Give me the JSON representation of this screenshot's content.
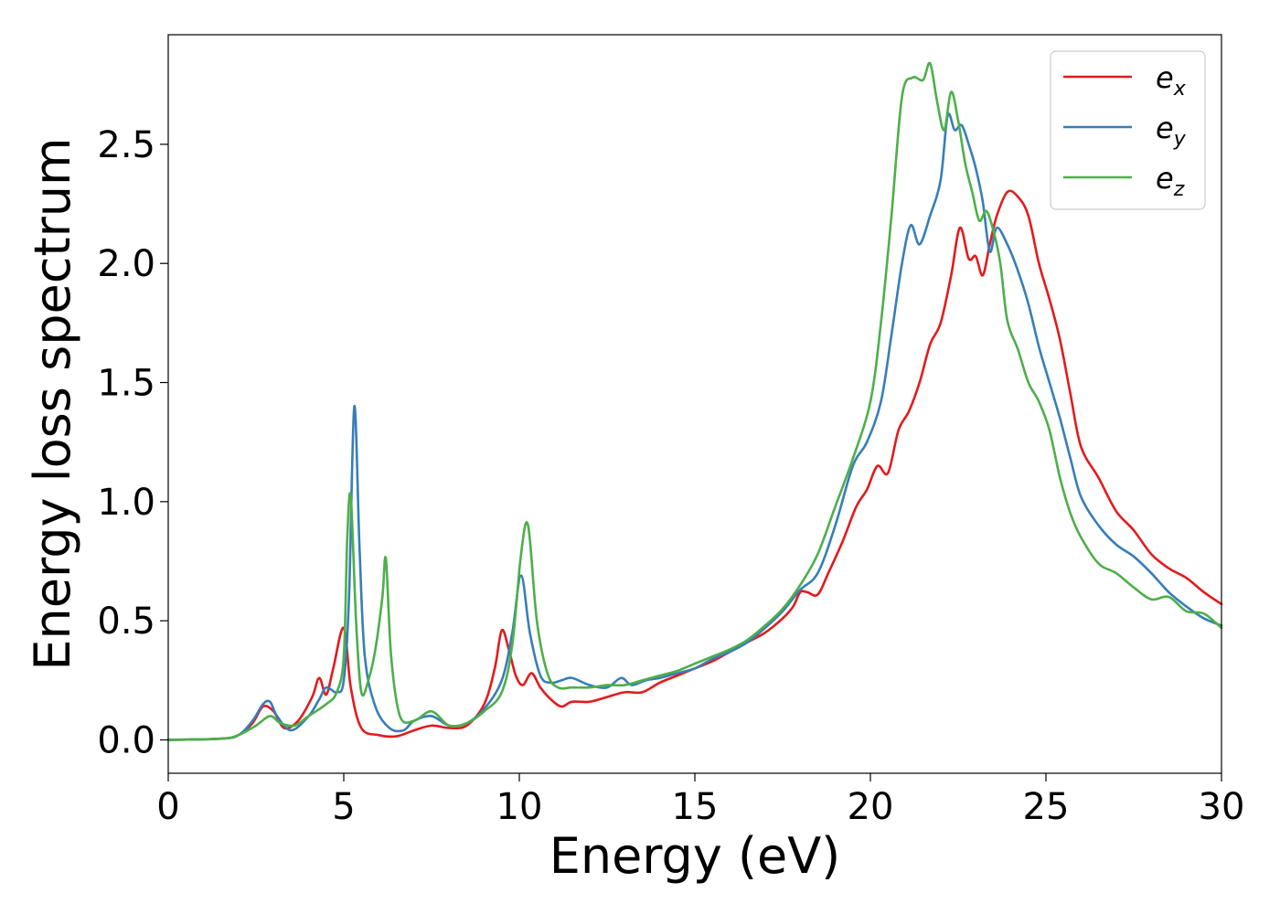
{
  "chart_data": {
    "type": "line",
    "title": "",
    "xlabel": "Energy (eV)",
    "ylabel": "Energy loss spectrum",
    "xlim": [
      0,
      30
    ],
    "ylim": [
      -0.14,
      2.96
    ],
    "xticks": [
      0,
      5,
      10,
      15,
      20,
      25,
      30
    ],
    "xtick_labels": [
      "0",
      "5",
      "10",
      "15",
      "20",
      "25",
      "30"
    ],
    "yticks": [
      0.0,
      0.5,
      1.0,
      1.5,
      2.0,
      2.5
    ],
    "ytick_labels": [
      "0.0",
      "0.5",
      "1.0",
      "1.5",
      "2.0",
      "2.5"
    ],
    "grid": false,
    "legend_position": "top-right",
    "series": [
      {
        "name": "e",
        "subscript": "x",
        "color": "#e41a1c",
        "x": [
          0,
          1.5,
          2,
          2.4,
          2.7,
          3.0,
          3.3,
          3.7,
          4.1,
          4.3,
          4.5,
          4.7,
          5.0,
          5.2,
          5.5,
          6.0,
          6.5,
          7.0,
          7.5,
          8.0,
          8.5,
          9.0,
          9.3,
          9.5,
          9.7,
          9.9,
          10.1,
          10.35,
          10.6,
          10.9,
          11.2,
          11.5,
          12.0,
          12.5,
          13.0,
          13.5,
          14.0,
          14.5,
          15.0,
          15.5,
          16.0,
          16.5,
          17.0,
          17.5,
          17.8,
          18.0,
          18.2,
          18.5,
          18.8,
          19.2,
          19.6,
          19.9,
          20.2,
          20.5,
          20.8,
          21.1,
          21.4,
          21.7,
          22.0,
          22.3,
          22.55,
          22.8,
          23.0,
          23.2,
          23.4,
          23.6,
          23.9,
          24.2,
          24.5,
          24.8,
          25.1,
          25.4,
          25.7,
          26.0,
          26.5,
          27.0,
          27.5,
          28.0,
          28.5,
          29.0,
          29.5,
          30.0
        ],
        "y": [
          0.0,
          0.005,
          0.02,
          0.07,
          0.14,
          0.12,
          0.05,
          0.08,
          0.18,
          0.26,
          0.19,
          0.3,
          0.47,
          0.22,
          0.05,
          0.02,
          0.015,
          0.04,
          0.06,
          0.05,
          0.06,
          0.15,
          0.3,
          0.46,
          0.38,
          0.27,
          0.23,
          0.28,
          0.22,
          0.17,
          0.14,
          0.16,
          0.16,
          0.18,
          0.2,
          0.2,
          0.24,
          0.27,
          0.3,
          0.33,
          0.37,
          0.41,
          0.45,
          0.51,
          0.56,
          0.62,
          0.62,
          0.61,
          0.7,
          0.83,
          0.98,
          1.05,
          1.15,
          1.12,
          1.3,
          1.38,
          1.5,
          1.66,
          1.75,
          1.95,
          2.15,
          2.02,
          2.03,
          1.95,
          2.08,
          2.2,
          2.3,
          2.28,
          2.2,
          2.0,
          1.85,
          1.68,
          1.45,
          1.23,
          1.1,
          0.96,
          0.88,
          0.78,
          0.72,
          0.68,
          0.62,
          0.57
        ]
      },
      {
        "name": "e",
        "subscript": "y",
        "color": "#377eb8",
        "x": [
          0,
          1.5,
          2,
          2.4,
          2.7,
          2.9,
          3.1,
          3.5,
          4.0,
          4.3,
          4.5,
          4.8,
          5.0,
          5.15,
          5.3,
          5.45,
          5.6,
          5.9,
          6.3,
          6.7,
          7.0,
          7.5,
          8.0,
          8.5,
          9.0,
          9.5,
          9.8,
          10.05,
          10.3,
          10.6,
          10.9,
          11.2,
          11.5,
          12.0,
          12.5,
          12.9,
          13.2,
          13.6,
          14.0,
          14.5,
          15.0,
          15.5,
          16.0,
          16.5,
          17.0,
          17.5,
          18.0,
          18.5,
          19.0,
          19.5,
          19.9,
          20.3,
          20.6,
          20.9,
          21.15,
          21.4,
          21.7,
          22.0,
          22.2,
          22.4,
          22.6,
          22.8,
          23.0,
          23.2,
          23.4,
          23.6,
          23.9,
          24.2,
          24.5,
          24.8,
          25.1,
          25.4,
          25.7,
          26.0,
          26.5,
          27.0,
          27.5,
          28.0,
          28.5,
          29.0,
          29.5,
          30.0
        ],
        "y": [
          0.0,
          0.005,
          0.02,
          0.08,
          0.15,
          0.16,
          0.1,
          0.04,
          0.1,
          0.17,
          0.22,
          0.2,
          0.25,
          0.6,
          1.4,
          0.8,
          0.35,
          0.14,
          0.05,
          0.04,
          0.08,
          0.1,
          0.06,
          0.07,
          0.13,
          0.25,
          0.45,
          0.69,
          0.45,
          0.27,
          0.24,
          0.25,
          0.26,
          0.23,
          0.22,
          0.26,
          0.23,
          0.25,
          0.26,
          0.28,
          0.3,
          0.34,
          0.37,
          0.41,
          0.47,
          0.54,
          0.63,
          0.7,
          0.9,
          1.15,
          1.25,
          1.42,
          1.7,
          2.0,
          2.16,
          2.08,
          2.2,
          2.35,
          2.62,
          2.56,
          2.58,
          2.5,
          2.4,
          2.26,
          2.05,
          2.15,
          2.08,
          1.97,
          1.83,
          1.65,
          1.5,
          1.35,
          1.18,
          1.02,
          0.9,
          0.82,
          0.77,
          0.7,
          0.62,
          0.56,
          0.51,
          0.48
        ]
      },
      {
        "name": "e",
        "subscript": "z",
        "color": "#4daf4a",
        "x": [
          0,
          1.5,
          2,
          2.5,
          2.9,
          3.2,
          3.6,
          4.0,
          4.5,
          4.8,
          5.0,
          5.1,
          5.2,
          5.35,
          5.5,
          5.7,
          5.9,
          6.1,
          6.2,
          6.35,
          6.6,
          7.0,
          7.5,
          8.0,
          8.5,
          9.0,
          9.5,
          9.8,
          10.05,
          10.25,
          10.5,
          10.8,
          11.1,
          11.5,
          12.0,
          12.5,
          13.0,
          13.5,
          14.0,
          14.5,
          15.0,
          15.5,
          16.0,
          16.5,
          17.0,
          17.5,
          18.0,
          18.5,
          19.0,
          19.5,
          20.0,
          20.3,
          20.6,
          20.9,
          21.2,
          21.5,
          21.7,
          21.9,
          22.1,
          22.3,
          22.5,
          22.7,
          22.9,
          23.1,
          23.3,
          23.5,
          23.7,
          23.9,
          24.2,
          24.5,
          24.8,
          25.1,
          25.4,
          25.7,
          26.0,
          26.5,
          27.0,
          27.5,
          28.0,
          28.5,
          29.0,
          29.5,
          30.0
        ],
        "y": [
          0.0,
          0.005,
          0.02,
          0.06,
          0.1,
          0.07,
          0.06,
          0.1,
          0.15,
          0.2,
          0.35,
          0.85,
          1.02,
          0.5,
          0.2,
          0.25,
          0.38,
          0.6,
          0.76,
          0.35,
          0.1,
          0.08,
          0.12,
          0.06,
          0.07,
          0.12,
          0.2,
          0.4,
          0.78,
          0.9,
          0.5,
          0.28,
          0.22,
          0.22,
          0.22,
          0.23,
          0.23,
          0.25,
          0.27,
          0.29,
          0.32,
          0.35,
          0.38,
          0.42,
          0.48,
          0.55,
          0.65,
          0.78,
          0.98,
          1.18,
          1.42,
          1.75,
          2.2,
          2.7,
          2.78,
          2.77,
          2.84,
          2.68,
          2.56,
          2.72,
          2.6,
          2.42,
          2.3,
          2.18,
          2.22,
          2.14,
          2.0,
          1.76,
          1.64,
          1.5,
          1.42,
          1.3,
          1.1,
          0.95,
          0.85,
          0.74,
          0.7,
          0.64,
          0.59,
          0.6,
          0.54,
          0.53,
          0.47
        ]
      }
    ]
  }
}
